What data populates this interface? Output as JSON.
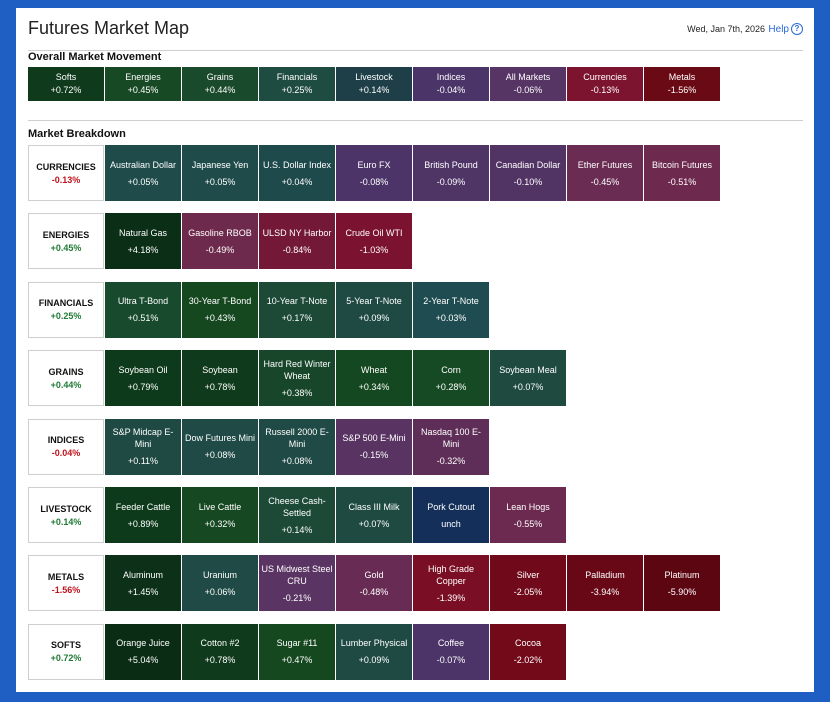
{
  "header": {
    "title": "Futures Market Map",
    "date": "Wed, Jan 7th, 2026",
    "help_label": "Help",
    "help_icon": "?"
  },
  "overall": {
    "section_title": "Overall Market Movement",
    "tiles": [
      {
        "name": "Softs",
        "value": "+0.72%",
        "color": "#0f3a1c"
      },
      {
        "name": "Energies",
        "value": "+0.45%",
        "color": "#174a24"
      },
      {
        "name": "Grains",
        "value": "+0.44%",
        "color": "#1a4a2c"
      },
      {
        "name": "Financials",
        "value": "+0.25%",
        "color": "#1f4c40"
      },
      {
        "name": "Livestock",
        "value": "+0.14%",
        "color": "#1e3f48"
      },
      {
        "name": "Indices",
        "value": "-0.04%",
        "color": "#4a3468"
      },
      {
        "name": "All Markets",
        "value": "-0.06%",
        "color": "#563464"
      },
      {
        "name": "Currencies",
        "value": "-0.13%",
        "color": "#7c1430"
      },
      {
        "name": "Metals",
        "value": "-1.56%",
        "color": "#6a0a14"
      }
    ]
  },
  "breakdown": {
    "section_title": "Market Breakdown",
    "rows": [
      {
        "name": "CURRENCIES",
        "value": "-0.13%",
        "sign": "neg",
        "tiles": [
          {
            "name": "Australian Dollar",
            "value": "+0.05%",
            "color": "#1f4c4a"
          },
          {
            "name": "Japanese Yen",
            "value": "+0.05%",
            "color": "#1f4c4a"
          },
          {
            "name": "U.S. Dollar Index",
            "value": "+0.04%",
            "color": "#1f4a4c"
          },
          {
            "name": "Euro FX",
            "value": "-0.08%",
            "color": "#4d3468"
          },
          {
            "name": "British Pound",
            "value": "-0.09%",
            "color": "#4f3466"
          },
          {
            "name": "Canadian Dollar",
            "value": "-0.10%",
            "color": "#523464"
          },
          {
            "name": "Ether Futures",
            "value": "-0.45%",
            "color": "#6a2c52"
          },
          {
            "name": "Bitcoin Futures",
            "value": "-0.51%",
            "color": "#6e2a4e"
          }
        ]
      },
      {
        "name": "ENERGIES",
        "value": "+0.45%",
        "sign": "pos",
        "tiles": [
          {
            "name": "Natural Gas",
            "value": "+4.18%",
            "color": "#0a2e16"
          },
          {
            "name": "Gasoline RBOB",
            "value": "-0.49%",
            "color": "#6e2a4c"
          },
          {
            "name": "ULSD NY Harbor",
            "value": "-0.84%",
            "color": "#741838"
          },
          {
            "name": "Crude Oil WTI",
            "value": "-1.03%",
            "color": "#7a1230"
          }
        ]
      },
      {
        "name": "FINANCIALS",
        "value": "+0.25%",
        "sign": "pos",
        "tiles": [
          {
            "name": "Ultra T-Bond",
            "value": "+0.51%",
            "color": "#184a2e"
          },
          {
            "name": "30-Year T-Bond",
            "value": "+0.43%",
            "color": "#164820"
          },
          {
            "name": "10-Year T-Note",
            "value": "+0.17%",
            "color": "#1c4a36"
          },
          {
            "name": "5-Year T-Note",
            "value": "+0.09%",
            "color": "#1f4a44"
          },
          {
            "name": "2-Year T-Note",
            "value": "+0.03%",
            "color": "#1f4c50"
          }
        ]
      },
      {
        "name": "GRAINS",
        "value": "+0.44%",
        "sign": "pos",
        "tiles": [
          {
            "name": "Soybean Oil",
            "value": "+0.79%",
            "color": "#0e3a1c"
          },
          {
            "name": "Soybean",
            "value": "+0.78%",
            "color": "#0f3a1c"
          },
          {
            "name": "Hard Red Winter Wheat",
            "value": "+0.38%",
            "color": "#17462a"
          },
          {
            "name": "Wheat",
            "value": "+0.34%",
            "color": "#134820"
          },
          {
            "name": "Corn",
            "value": "+0.28%",
            "color": "#164a24"
          },
          {
            "name": "Soybean Meal",
            "value": "+0.07%",
            "color": "#1e4a40"
          }
        ]
      },
      {
        "name": "INDICES",
        "value": "-0.04%",
        "sign": "neg",
        "tiles": [
          {
            "name": "S&P Midcap E-Mini",
            "value": "+0.11%",
            "color": "#1f4a44"
          },
          {
            "name": "Dow Futures Mini",
            "value": "+0.08%",
            "color": "#1f4a46"
          },
          {
            "name": "Russell 2000 E-Mini",
            "value": "+0.08%",
            "color": "#1f4a46"
          },
          {
            "name": "S&P 500 E-Mini",
            "value": "-0.15%",
            "color": "#593462"
          },
          {
            "name": "Nasdaq 100 E-Mini",
            "value": "-0.32%",
            "color": "#5f2e58"
          }
        ]
      },
      {
        "name": "LIVESTOCK",
        "value": "+0.14%",
        "sign": "pos",
        "tiles": [
          {
            "name": "Feeder Cattle",
            "value": "+0.89%",
            "color": "#0d3a1a"
          },
          {
            "name": "Live Cattle",
            "value": "+0.32%",
            "color": "#164822"
          },
          {
            "name": "Cheese Cash-Settled",
            "value": "+0.14%",
            "color": "#1c4a36"
          },
          {
            "name": "Class III Milk",
            "value": "+0.07%",
            "color": "#1f4a42"
          },
          {
            "name": "Pork Cutout",
            "value": "unch",
            "color": "#14305a"
          },
          {
            "name": "Lean Hogs",
            "value": "-0.55%",
            "color": "#6c2a50"
          }
        ]
      },
      {
        "name": "METALS",
        "value": "-1.56%",
        "sign": "neg",
        "tiles": [
          {
            "name": "Aluminum",
            "value": "+1.45%",
            "color": "#0c3018"
          },
          {
            "name": "Uranium",
            "value": "+0.06%",
            "color": "#1f4a46"
          },
          {
            "name": "US Midwest Steel CRU",
            "value": "-0.21%",
            "color": "#5a3462"
          },
          {
            "name": "Gold",
            "value": "-0.48%",
            "color": "#682c54"
          },
          {
            "name": "High Grade Copper",
            "value": "-1.39%",
            "color": "#7a0e24"
          },
          {
            "name": "Silver",
            "value": "-2.05%",
            "color": "#700a1a"
          },
          {
            "name": "Palladium",
            "value": "-3.94%",
            "color": "#680816"
          },
          {
            "name": "Platinum",
            "value": "-5.90%",
            "color": "#5c0612"
          }
        ]
      },
      {
        "name": "SOFTS",
        "value": "+0.72%",
        "sign": "pos",
        "tiles": [
          {
            "name": "Orange Juice",
            "value": "+5.04%",
            "color": "#0a2c14"
          },
          {
            "name": "Cotton #2",
            "value": "+0.78%",
            "color": "#0f3a1c"
          },
          {
            "name": "Sugar #11",
            "value": "+0.47%",
            "color": "#164820"
          },
          {
            "name": "Lumber Physical",
            "value": "+0.09%",
            "color": "#1f4a44"
          },
          {
            "name": "Coffee",
            "value": "-0.07%",
            "color": "#4c3468"
          },
          {
            "name": "Cocoa",
            "value": "-2.02%",
            "color": "#720a1a"
          }
        ]
      }
    ]
  }
}
